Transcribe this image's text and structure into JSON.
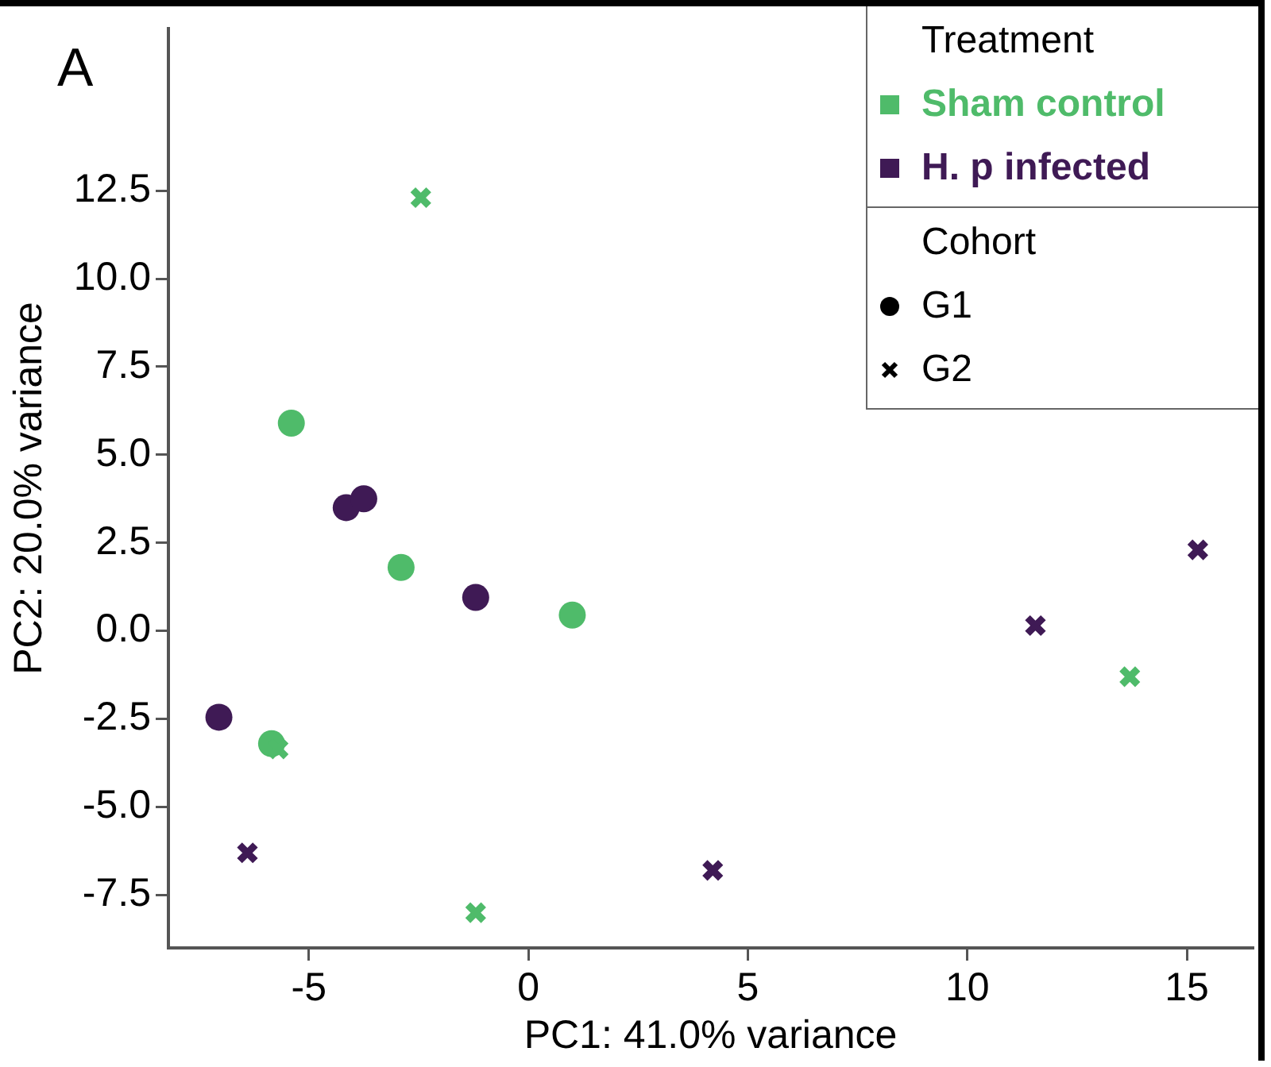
{
  "chart_data": {
    "type": "scatter",
    "xlabel": "PC1: 41.0% variance",
    "ylabel": "PC2: 20.0% variance",
    "xlim": [
      -8.2,
      16.5
    ],
    "ylim": [
      -9.0,
      17.1
    ],
    "xticks": [
      -5,
      0,
      5,
      10,
      15
    ],
    "yticks": [
      {
        "value": -7.5,
        "label": "-7.5"
      },
      {
        "value": -5,
        "label": "-5.0"
      },
      {
        "value": -2.5,
        "label": "-2.5"
      },
      {
        "value": 0,
        "label": "0.0"
      },
      {
        "value": 2.5,
        "label": "2.5"
      },
      {
        "value": 5,
        "label": "5.0"
      },
      {
        "value": 7.5,
        "label": "7.5"
      },
      {
        "value": 10,
        "label": "10.0"
      },
      {
        "value": 12.5,
        "label": "12.5"
      }
    ],
    "grid": false,
    "legend": "top right",
    "legend_title": "Treatment",
    "annotations": [
      "A",
      "Cohort",
      "G1",
      "G2"
    ],
    "series": [
      {
        "name": "Sham control",
        "color": "#4fbb6a",
        "marker": "circle",
        "x": [
          -5.4,
          -2.9,
          1.0,
          -5.85
        ],
        "values": [
          5.9,
          1.8,
          0.45,
          -3.2
        ]
      },
      {
        "name": "H. p infected",
        "color": "#3f1a55",
        "marker": "circle",
        "x": [
          -4.15,
          -3.75,
          -1.2,
          -7.05
        ],
        "values": [
          3.5,
          3.75,
          0.95,
          -2.45
        ]
      },
      {
        "color": "#4fbb6a",
        "marker": "cross",
        "x": [
          -2.45,
          -5.7,
          -1.2,
          13.7
        ],
        "values": [
          12.3,
          -3.35,
          -8.0,
          -1.3
        ]
      },
      {
        "color": "#3f1a55",
        "marker": "cross",
        "x": [
          -6.4,
          4.2,
          11.55,
          15.25
        ],
        "values": [
          -6.3,
          -6.8,
          0.15,
          2.3
        ]
      }
    ]
  }
}
